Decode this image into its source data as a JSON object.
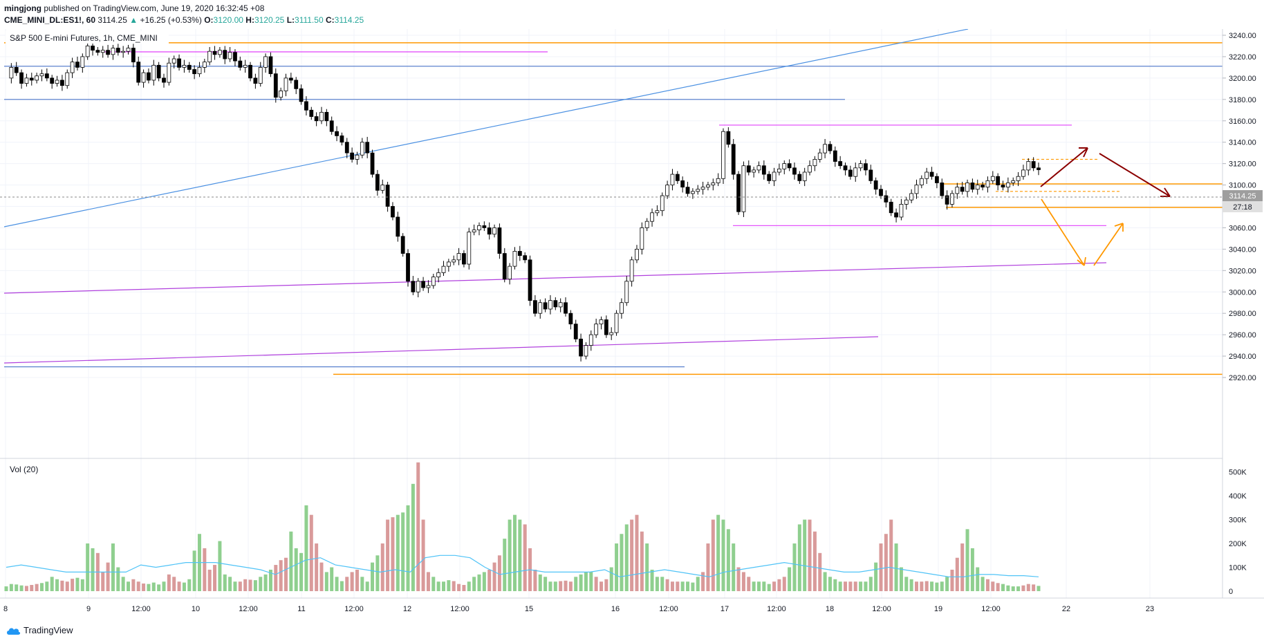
{
  "header": {
    "publisher": "mingjong",
    "published_text": "published on TradingView.com, June 19, 2020 16:32:45 +08",
    "symbol": "CME_MINI_DL:ES1!, 60",
    "last_price": "3114.25",
    "change_arrow": "▲",
    "change": "+16.25 (+0.53%)",
    "o_label": "O:",
    "o_value": "3120.00",
    "h_label": "H:",
    "h_value": "3120.25",
    "l_label": "L:",
    "l_value": "3111.50",
    "c_label": "C:",
    "c_value": "3114.25"
  },
  "chart": {
    "title": "S&P 500 E-mini Futures, 1h, CME_MINI",
    "volume_label": "Vol (20)",
    "price_tag": "3114.25",
    "countdown_tag": "27:18"
  },
  "footer": {
    "brand": "TradingView",
    "logo_icon": "tradingview-cloud-icon"
  },
  "colors": {
    "up": "#26a69a",
    "orange": "#ff9800",
    "magenta": "#e040fb",
    "blue": "#2962ff",
    "purple": "#9c27b0",
    "darkred": "#8b0000",
    "vol_up": "#8fcf8f",
    "vol_down": "#d99a9a",
    "vol_ma": "#4fc3f7"
  },
  "chart_data": [
    {
      "type": "line",
      "title": "S&P 500 E-mini Futures, 1h, CME_MINI",
      "x_tick_labels": [
        "8",
        "9",
        "12:00",
        "10",
        "12:00",
        "11",
        "12:00",
        "12",
        "12:00",
        "15",
        "16",
        "12:00",
        "17",
        "12:00",
        "18",
        "12:00",
        "19",
        "12:00",
        "22",
        "23"
      ],
      "y_tick_labels": [
        "3240.00",
        "3220.00",
        "3200.00",
        "3180.00",
        "3160.00",
        "3140.00",
        "3120.00",
        "3100.00",
        "3080.00",
        "3060.00",
        "3040.00",
        "3020.00",
        "3000.00",
        "2980.00",
        "2960.00",
        "2940.00",
        "2920.00"
      ],
      "ylim": [
        2905,
        3250
      ],
      "price_path": [
        3200,
        3210,
        3205,
        3195,
        3200,
        3198,
        3202,
        3204,
        3200,
        3195,
        3198,
        3193,
        3205,
        3215,
        3210,
        3220,
        3230,
        3226,
        3224,
        3226,
        3222,
        3228,
        3224,
        3225,
        3228,
        3215,
        3196,
        3205,
        3198,
        3212,
        3200,
        3196,
        3214,
        3218,
        3210,
        3212,
        3208,
        3204,
        3210,
        3215,
        3225,
        3222,
        3226,
        3218,
        3224,
        3216,
        3210,
        3212,
        3200,
        3195,
        3210,
        3220,
        3204,
        3182,
        3188,
        3200,
        3198,
        3190,
        3178,
        3170,
        3164,
        3160,
        3168,
        3160,
        3150,
        3146,
        3140,
        3130,
        3124,
        3128,
        3140,
        3130,
        3110,
        3095,
        3100,
        3080,
        3070,
        3052,
        3036,
        3010,
        3000,
        3010,
        3004,
        3006,
        3014,
        3018,
        3024,
        3028,
        3030,
        3036,
        3026,
        3056,
        3058,
        3062,
        3060,
        3054,
        3060,
        3036,
        3012,
        3024,
        3038,
        3034,
        3030,
        2992,
        2980,
        2990,
        2984,
        2992,
        2986,
        2990,
        2980,
        2970,
        2956,
        2940,
        2950,
        2960,
        2970,
        2974,
        2960,
        2962,
        2980,
        2990,
        3010,
        3030,
        3040,
        3060,
        3066,
        3074,
        3076,
        3090,
        3100,
        3110,
        3104,
        3098,
        3092,
        3094,
        3096,
        3098,
        3100,
        3102,
        3106,
        3150,
        3138,
        3110,
        3075,
        3118,
        3112,
        3114,
        3118,
        3110,
        3104,
        3112,
        3115,
        3120,
        3116,
        3110,
        3104,
        3112,
        3118,
        3124,
        3130,
        3138,
        3132,
        3122,
        3118,
        3114,
        3108,
        3116,
        3120,
        3114,
        3104,
        3096,
        3090,
        3084,
        3074,
        3070,
        3082,
        3086,
        3092,
        3100,
        3106,
        3112,
        3108,
        3102,
        3090,
        3082,
        3092,
        3098,
        3094,
        3102,
        3096,
        3100,
        3098,
        3104,
        3108,
        3100,
        3098,
        3102,
        3104,
        3108,
        3114,
        3122,
        3116,
        3114.25
      ],
      "levels": [
        {
          "value": 3233,
          "color": "orange"
        },
        {
          "value": 3211,
          "color": "blue"
        },
        {
          "value": 3180,
          "color": "blue"
        },
        {
          "value": 3156,
          "color": "magenta"
        },
        {
          "value": 3062,
          "color": "magenta"
        },
        {
          "value": 3101,
          "color": "orange"
        },
        {
          "value": 3079,
          "color": "orange"
        },
        {
          "value": 3124,
          "color": "orange-dashed"
        },
        {
          "value": 3094,
          "color": "orange-dashed"
        },
        {
          "value": 2930,
          "color": "blue"
        },
        {
          "value": 2923,
          "color": "orange"
        }
      ]
    },
    {
      "type": "bar",
      "title": "Vol (20)",
      "y_tick_labels": [
        "500K",
        "400K",
        "300K",
        "200K",
        "100K",
        "0"
      ],
      "ylim": [
        0,
        580000
      ],
      "values": [
        20,
        30,
        28,
        24,
        22,
        26,
        30,
        34,
        40,
        60,
        50,
        44,
        40,
        52,
        56,
        50,
        200,
        180,
        160,
        80,
        120,
        200,
        100,
        60,
        40,
        50,
        40,
        32,
        30,
        36,
        28,
        40,
        70,
        60,
        40,
        36,
        50,
        170,
        240,
        180,
        90,
        110,
        210,
        70,
        60,
        40,
        40,
        50,
        48,
        46,
        60,
        70,
        90,
        110,
        130,
        140,
        250,
        180,
        160,
        360,
        320,
        200,
        120,
        80,
        100,
        60,
        42,
        60,
        80,
        90,
        60,
        40,
        120,
        150,
        200,
        300,
        310,
        320,
        330,
        360,
        450,
        540,
        300,
        80,
        60,
        40,
        40,
        46,
        42,
        30,
        26,
        40,
        60,
        70,
        80,
        90,
        120,
        150,
        220,
        300,
        320,
        300,
        280,
        180,
        90,
        70,
        60,
        40,
        40,
        42,
        44,
        40,
        60,
        70,
        80,
        80,
        60,
        40,
        50,
        100,
        200,
        240,
        280,
        300,
        320,
        250,
        200,
        90,
        60,
        60,
        50,
        40,
        40,
        40,
        40,
        36,
        60,
        80,
        200,
        300,
        320,
        300,
        260,
        200,
        100,
        80,
        60,
        40,
        40,
        40,
        30,
        40,
        50,
        60,
        100,
        200,
        280,
        300,
        300,
        250,
        160,
        80,
        60,
        50,
        40,
        40,
        40,
        40,
        40,
        40,
        60,
        120,
        200,
        240,
        300,
        200,
        100,
        60,
        50,
        40,
        40,
        42,
        40,
        36,
        40,
        60,
        90,
        140,
        200,
        260,
        180,
        100,
        60,
        50,
        40,
        34,
        30,
        24,
        20,
        20,
        24,
        30,
        28,
        22
      ],
      "ma20": [
        100,
        110,
        100,
        90,
        80,
        80,
        80,
        80,
        80,
        110,
        100,
        110,
        120,
        120,
        120,
        110,
        100,
        90,
        70,
        100,
        130,
        140,
        110,
        100,
        90,
        80,
        90,
        80,
        140,
        150,
        150,
        140,
        100,
        70,
        80,
        90,
        80,
        80,
        80,
        80,
        90,
        60,
        70,
        80,
        90,
        80,
        70,
        60,
        80,
        90,
        100,
        110,
        120,
        110,
        100,
        90,
        80,
        80,
        90,
        100,
        90,
        80,
        70,
        60,
        60,
        70,
        70,
        65,
        65,
        60
      ]
    }
  ]
}
